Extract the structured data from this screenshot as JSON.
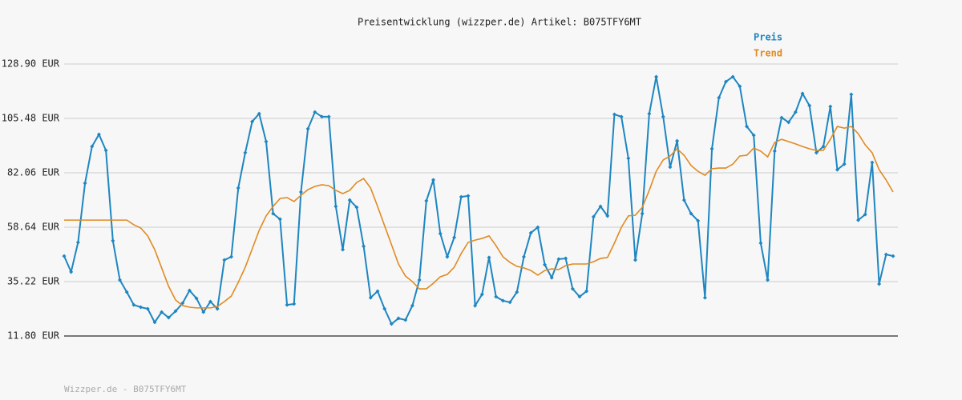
{
  "chart_data": {
    "type": "line",
    "title": "Preisentwicklung (wizzper.de) Artikel: B075TFY6MT",
    "footer": "Wizzper.de - B075TFY6MT",
    "ylim": [
      11.8,
      128.9
    ],
    "yticks": [
      {
        "value": 11.8,
        "label": "11.80 EUR"
      },
      {
        "value": 35.22,
        "label": "35.22 EUR"
      },
      {
        "value": 58.64,
        "label": "58.64 EUR"
      },
      {
        "value": 82.06,
        "label": "82.06 EUR"
      },
      {
        "value": 105.48,
        "label": "105.48 EUR"
      },
      {
        "value": 128.9,
        "label": "128.90 EUR"
      }
    ],
    "grid": true,
    "legend": "top-right",
    "series": [
      {
        "name": "Preis",
        "color": "#1e86c0",
        "markers": true,
        "values": [
          46.2,
          39.4,
          52.1,
          77.6,
          93.4,
          98.6,
          91.7,
          52.8,
          35.9,
          30.7,
          25.2,
          24.2,
          23.5,
          17.7,
          22.1,
          19.7,
          22.5,
          25.9,
          31.4,
          28.0,
          22.1,
          26.6,
          23.5,
          44.5,
          45.9,
          75.5,
          90.7,
          104.1,
          107.5,
          95.5,
          64.5,
          62.1,
          25.2,
          25.6,
          73.8,
          101.0,
          108.2,
          106.2,
          106.2,
          67.6,
          49.0,
          70.3,
          67.2,
          50.4,
          28.3,
          31.1,
          23.5,
          17.0,
          19.4,
          18.7,
          24.9,
          35.9,
          70.0,
          79.0,
          55.9,
          45.9,
          54.2,
          71.7,
          72.1,
          24.9,
          29.7,
          45.6,
          28.7,
          27.0,
          26.3,
          30.7,
          45.9,
          56.2,
          58.6,
          42.5,
          36.9,
          44.9,
          45.2,
          32.1,
          28.7,
          31.1,
          63.1,
          67.6,
          63.5,
          107.2,
          106.2,
          88.3,
          44.5,
          64.5,
          107.5,
          123.4,
          106.2,
          84.5,
          95.8,
          70.3,
          64.5,
          61.4,
          28.3,
          92.4,
          114.4,
          121.3,
          123.4,
          119.3,
          102.0,
          98.2,
          51.8,
          35.9,
          91.4,
          105.8,
          103.8,
          108.2,
          116.2,
          111.0,
          90.7,
          93.4,
          110.6,
          83.4,
          85.8,
          115.8,
          61.7,
          64.1,
          86.5,
          34.2,
          46.9,
          46.2
        ]
      },
      {
        "name": "Trend",
        "color": "#e08a22",
        "markers": false,
        "values": [
          61.7,
          61.7,
          61.7,
          61.7,
          61.7,
          61.7,
          61.7,
          61.7,
          61.7,
          61.7,
          59.7,
          58.3,
          54.9,
          49.0,
          41.1,
          33.2,
          27.3,
          24.9,
          24.2,
          23.9,
          23.9,
          23.9,
          24.5,
          26.6,
          29.0,
          34.9,
          41.4,
          49.3,
          57.3,
          63.5,
          67.6,
          71.0,
          71.4,
          69.7,
          72.4,
          74.8,
          76.2,
          76.9,
          76.5,
          74.5,
          73.1,
          74.5,
          77.9,
          79.6,
          75.5,
          67.6,
          59.3,
          51.1,
          42.8,
          37.6,
          35.2,
          32.1,
          32.1,
          34.5,
          37.3,
          38.3,
          41.4,
          47.3,
          52.1,
          53.1,
          53.8,
          54.9,
          50.7,
          45.9,
          43.5,
          41.8,
          41.1,
          40.0,
          38.0,
          40.0,
          40.7,
          40.4,
          42.1,
          42.8,
          42.8,
          42.8,
          43.8,
          45.2,
          45.6,
          51.8,
          58.6,
          63.5,
          63.8,
          67.2,
          74.5,
          82.7,
          87.6,
          89.3,
          92.4,
          89.6,
          85.2,
          82.7,
          81.0,
          83.8,
          84.1,
          84.1,
          85.8,
          89.3,
          89.6,
          92.7,
          91.4,
          88.9,
          95.1,
          96.5,
          95.5,
          94.5,
          93.4,
          92.4,
          91.7,
          91.7,
          96.5,
          102.0,
          101.3,
          102.0,
          98.9,
          94.1,
          90.7,
          83.4,
          79.0,
          73.8
        ]
      }
    ]
  }
}
